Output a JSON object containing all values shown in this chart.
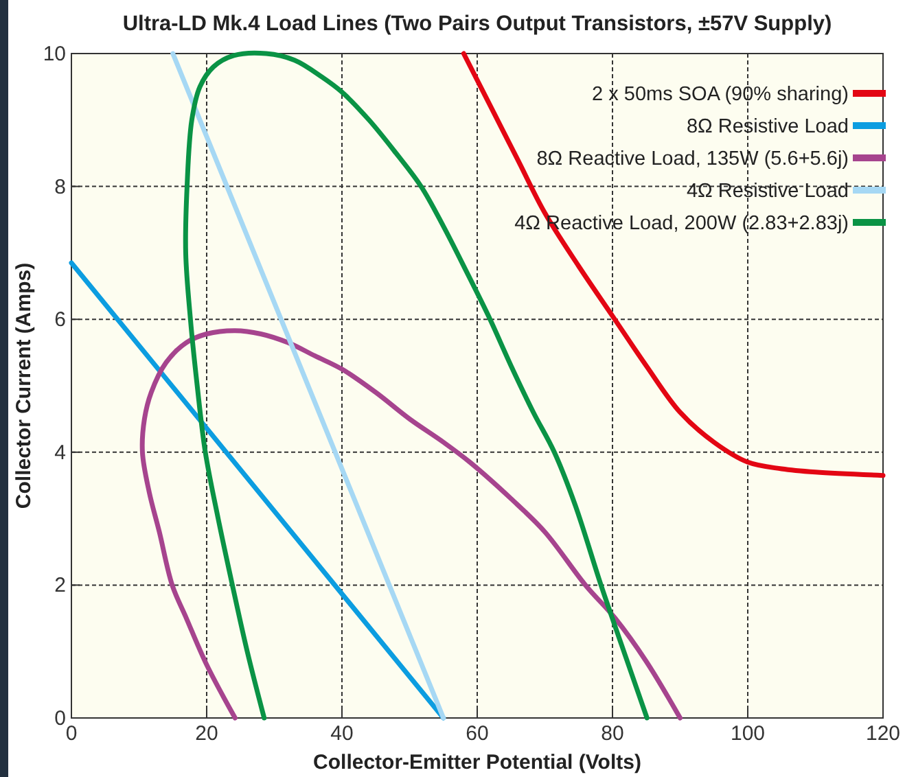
{
  "chart_data": {
    "type": "line",
    "title": "Ultra-LD Mk.4 Load Lines (Two Pairs Output Transistors, ±57V Supply)",
    "xlabel": "Collector-Emitter Potential (Volts)",
    "ylabel": "Collector Current (Amps)",
    "xlim": [
      0,
      120
    ],
    "ylim": [
      0,
      10
    ],
    "xticks": [
      0,
      20,
      40,
      60,
      80,
      100,
      120
    ],
    "yticks": [
      0,
      2,
      4,
      6,
      8,
      10
    ],
    "grid": true,
    "legend": "top right",
    "line_style": "solid",
    "series": [
      {
        "name": "2 x 50ms SOA (90% sharing)",
        "color": "#e30613",
        "x": [
          58,
          62,
          66,
          70,
          75,
          80,
          85,
          90,
          95,
          100,
          105,
          110,
          120
        ],
        "values": [
          10,
          9.2,
          8.4,
          7.6,
          6.8,
          6.05,
          5.3,
          4.6,
          4.15,
          3.85,
          3.75,
          3.7,
          3.65
        ]
      },
      {
        "name": "8Ω Resistive Load",
        "color": "#0c9de0",
        "x": [
          0,
          55
        ],
        "values": [
          6.85,
          0
        ]
      },
      {
        "name": "8Ω Reactive Load, 135W (5.6+5.6j)",
        "color": "#a6448e",
        "x": [
          24.2,
          20,
          17,
          14.9,
          13,
          11.5,
          10.5,
          10.8,
          11.8,
          14,
          17,
          20,
          24.2,
          28,
          32,
          36,
          40,
          45,
          50,
          55,
          58.9,
          65,
          70,
          76,
          80.4,
          85,
          90
        ],
        "values": [
          0,
          0.8,
          1.5,
          2,
          2.8,
          3.4,
          4,
          4.5,
          4.9,
          5.35,
          5.65,
          5.78,
          5.83,
          5.78,
          5.65,
          5.45,
          5.25,
          4.9,
          4.5,
          4.15,
          3.85,
          3.3,
          2.8,
          2,
          1.5,
          0.85,
          0
        ]
      },
      {
        "name": "4Ω Resistive Load",
        "color": "#a6d8f4",
        "x": [
          15,
          55
        ],
        "values": [
          10,
          0
        ]
      },
      {
        "name": "4Ω Reactive Load, 200W (2.83+2.83j)",
        "color": "#0a9345",
        "x": [
          28.5,
          26,
          23.8,
          21.7,
          19.8,
          18.6,
          17.6,
          16.9,
          17.1,
          17.8,
          19,
          21,
          24,
          28.8,
          33,
          37,
          40,
          44,
          48,
          51.7,
          55,
          58.5,
          61.9,
          65,
          68.3,
          71.4,
          74.5,
          78.3,
          81,
          85.1
        ],
        "values": [
          0,
          1,
          2,
          3,
          4,
          5,
          6,
          7,
          8,
          9,
          9.5,
          9.8,
          9.97,
          10,
          9.9,
          9.65,
          9.42,
          9,
          8.5,
          8,
          7.4,
          6.7,
          6,
          5.3,
          4.6,
          4,
          3.2,
          2,
          1.2,
          0
        ]
      }
    ]
  }
}
